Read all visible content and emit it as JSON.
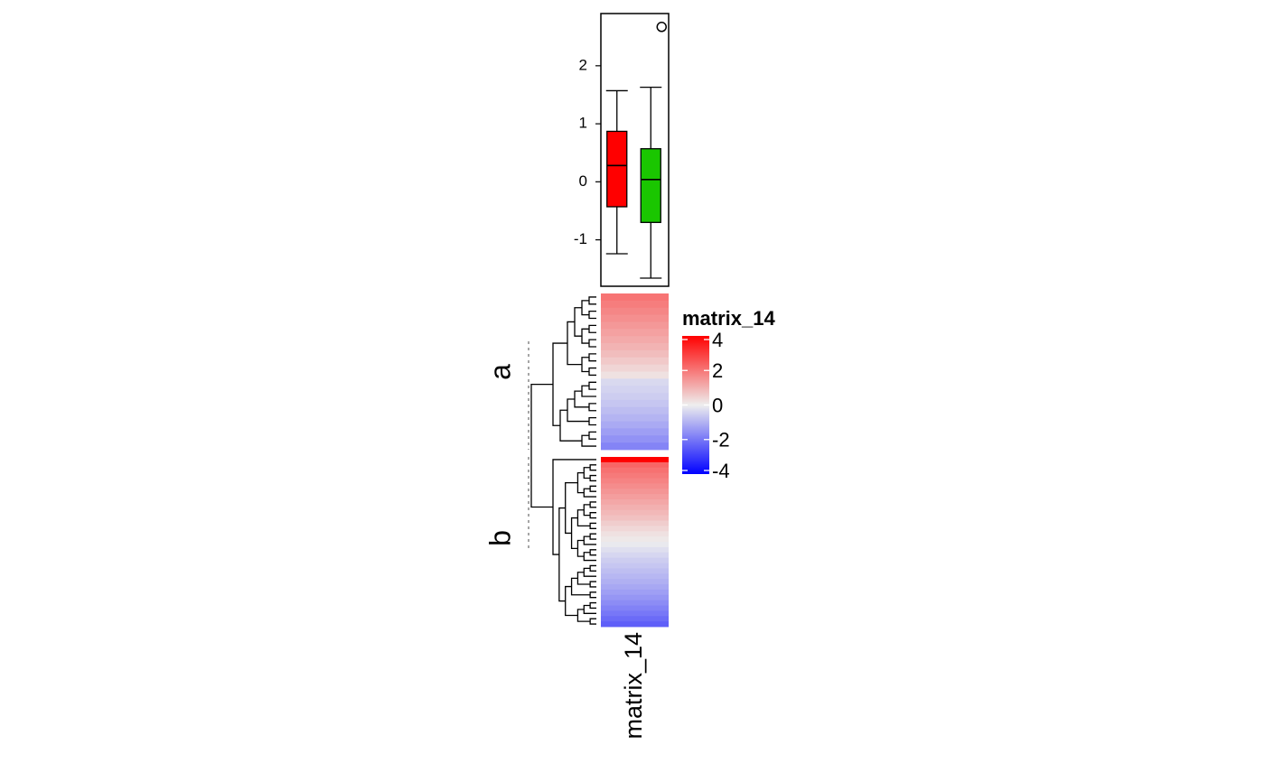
{
  "chart_data": [
    {
      "type": "box",
      "ylim": [
        -1.8,
        2.9
      ],
      "y_ticks": [
        -1,
        0,
        1,
        2
      ],
      "y_tick_labels": [
        "-1",
        "0",
        "1",
        "2"
      ],
      "boxes": [
        {
          "group": "a",
          "color": "#FF0000",
          "whisker_low": -1.24,
          "q1": -0.43,
          "median": 0.28,
          "q3": 0.87,
          "whisker_high": 1.57,
          "outliers": []
        },
        {
          "group": "b",
          "color": "#1AC600",
          "whisker_low": -1.66,
          "q1": -0.7,
          "median": 0.04,
          "q3": 0.57,
          "whisker_high": 1.63,
          "outliers": [
            2.67
          ]
        }
      ]
    },
    {
      "type": "heatmap",
      "column_label": "matrix_14",
      "row_slices": [
        {
          "label": "a",
          "values": [
            2.05,
            1.9,
            1.75,
            1.6,
            1.45,
            1.3,
            1.15,
            1.0,
            0.82,
            0.62,
            0.42,
            0.22,
            -0.35,
            -0.45,
            -0.55,
            -0.68,
            -0.82,
            -0.98,
            -1.15,
            -1.35,
            -1.55,
            -1.78
          ]
        },
        {
          "label": "b",
          "values": [
            4.0,
            2.3,
            2.1,
            1.95,
            1.8,
            1.65,
            1.5,
            1.35,
            1.2,
            1.05,
            0.9,
            0.75,
            0.55,
            0.38,
            0.22,
            0.1,
            -0.08,
            -0.25,
            -0.4,
            -0.55,
            -0.68,
            -0.8,
            -0.92,
            -1.05,
            -1.18,
            -1.32,
            -1.48,
            -1.65,
            -1.82,
            -2.0,
            -2.2,
            -2.4
          ]
        }
      ],
      "legend": {
        "title": "matrix_14",
        "ticks": [
          4,
          2,
          0,
          -2,
          -4
        ],
        "tick_labels": [
          "4",
          "2",
          "0",
          "-2",
          "-4"
        ],
        "colors": {
          "high": "#FF0000",
          "mid": "#EEEEEE",
          "low": "#0000FF"
        },
        "placement": "right"
      }
    }
  ]
}
